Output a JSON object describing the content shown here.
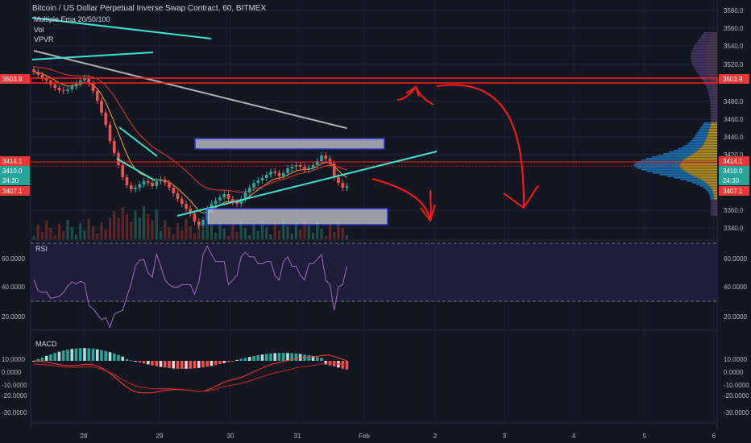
{
  "header": {
    "title": "Bitcoin / US Dollar Perpetual Inverse Swap Contract, 60, BITMEX",
    "indicators": [
      "Multiple Ema 20/50/100",
      "Vol",
      "VPVR"
    ]
  },
  "price_axis": {
    "ticks": [
      "3580.0",
      "3560.0",
      "3540.0",
      "3520.0",
      "3480.0",
      "3460.0",
      "3440.0",
      "3420.0",
      "3360.0",
      "3340.0"
    ],
    "tags": [
      {
        "text": "3503.9",
        "color": "#e53935"
      },
      {
        "text": "3414.1",
        "color": "#e53935"
      },
      {
        "text": "3410.0",
        "color": "#26a69a"
      },
      {
        "text": "24:30",
        "color": "#26a69a"
      },
      {
        "text": "3407.1",
        "color": "#e53935"
      }
    ]
  },
  "rsi_panel": {
    "label": "RSI",
    "ticks": [
      "60.0000",
      "40.0000",
      "20.0000"
    ],
    "right_ticks": [
      "60.0000",
      "40.0000",
      "20.0000"
    ]
  },
  "macd_panel": {
    "label": "MACD",
    "ticks": [
      "10.0000",
      "0.0000",
      "-10.0000",
      "-20.0000",
      "-30.0000"
    ]
  },
  "time_axis": {
    "ticks": [
      "28",
      "29",
      "30",
      "31",
      "Feb",
      "2",
      "3",
      "4",
      "5",
      "6"
    ]
  },
  "colors": {
    "bg": "#131722",
    "up": "#26a69a",
    "down": "#ef5350",
    "ema": "#e53935",
    "ema2": "#f5a623",
    "ema3": "#b0b0b0",
    "trend": "#40e0d0",
    "arrow": "#ff1a1a"
  },
  "chart_data": {
    "type": "candlestick",
    "title": "Bitcoin / US Dollar Perpetual Inverse Swap Contract, 60, BITMEX",
    "xlabel": "",
    "ylabel": "",
    "x_ticks": [
      "28",
      "29",
      "30",
      "31",
      "Feb",
      "2",
      "3",
      "4",
      "5",
      "6"
    ],
    "ylim": [
      3330,
      3590
    ],
    "close": [
      3556,
      3552,
      3548,
      3545,
      3540,
      3536,
      3533,
      3532,
      3534,
      3538,
      3541,
      3545,
      3548,
      3541,
      3532,
      3520,
      3505,
      3490,
      3470,
      3455,
      3440,
      3425,
      3415,
      3410,
      3412,
      3416,
      3420,
      3418,
      3414,
      3420,
      3422,
      3418,
      3412,
      3405,
      3398,
      3392,
      3386,
      3380,
      3370,
      3365,
      3372,
      3385,
      3392,
      3396,
      3400,
      3404,
      3398,
      3394,
      3392,
      3398,
      3406,
      3412,
      3418,
      3421,
      3424,
      3428,
      3432,
      3430,
      3426,
      3430,
      3436,
      3438,
      3440,
      3438,
      3434,
      3437,
      3440,
      3445,
      3452,
      3448,
      3442,
      3425,
      3418,
      3412,
      3414
    ],
    "horizontal_levels": [
      3503.9,
      3414.1,
      3407.1
    ],
    "rsi": {
      "ylim": [
        10,
        70
      ],
      "bands": [
        30,
        70
      ]
    },
    "macd": {
      "ylim": [
        -35,
        12
      ]
    }
  }
}
